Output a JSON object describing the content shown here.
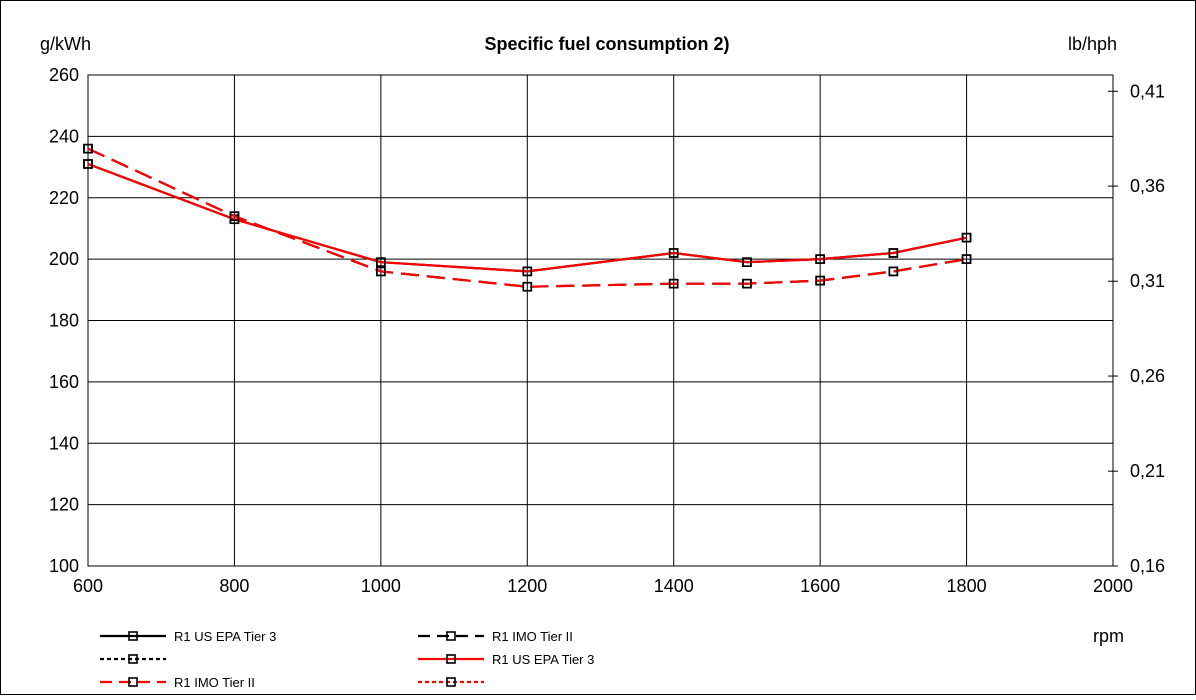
{
  "chart_data": {
    "type": "line",
    "title": "Specific fuel consumption 2)",
    "ylabel": "g/kWh",
    "y2label": "lb/hph",
    "xlabel": "rpm",
    "xlim": [
      600,
      2000
    ],
    "ylim": [
      100,
      260
    ],
    "x_ticks": [
      600,
      800,
      1000,
      1200,
      1400,
      1600,
      1800,
      2000
    ],
    "y_ticks": [
      100,
      120,
      140,
      160,
      180,
      200,
      220,
      240,
      260
    ],
    "y2_ticks": [
      "0,16",
      "0,21",
      "0,26",
      "0,31",
      "0,36",
      "0,41"
    ],
    "y2_ticks_in_y_units": [
      100,
      130.9,
      161.9,
      192.8,
      223.8,
      254.7
    ],
    "grid": true,
    "legend_position": "bottom",
    "series": [
      {
        "name": "R1 US EPA Tier 3",
        "color": "#000000",
        "style": "solid",
        "marker": "square",
        "x": [
          600,
          800,
          1000,
          1200,
          1400,
          1500,
          1600,
          1700,
          1800
        ],
        "values": [
          231,
          213,
          199,
          196,
          202,
          199,
          200,
          202,
          207
        ]
      },
      {
        "name": "R1 IMO Tier II",
        "color": "#000000",
        "style": "dashed",
        "marker": "square",
        "x": [
          600,
          800,
          1000,
          1200,
          1400,
          1500,
          1600,
          1700,
          1800
        ],
        "values": [
          236,
          214,
          196,
          191,
          192,
          192,
          193,
          196,
          200
        ]
      },
      {
        "name": "",
        "color": "#000000",
        "style": "dotted",
        "marker": "square",
        "x": [],
        "values": []
      },
      {
        "name": "R1 US EPA Tier 3",
        "color": "#ff0000",
        "style": "solid",
        "marker": "square",
        "x": [
          600,
          800,
          1000,
          1200,
          1400,
          1500,
          1600,
          1700,
          1800
        ],
        "values": [
          231,
          213,
          199,
          196,
          202,
          199,
          200,
          202,
          207
        ]
      },
      {
        "name": "R1 IMO Tier II",
        "color": "#ff0000",
        "style": "dashed",
        "marker": "square",
        "x": [
          600,
          800,
          1000,
          1200,
          1400,
          1500,
          1600,
          1700,
          1800
        ],
        "values": [
          236,
          214,
          196,
          191,
          192,
          192,
          193,
          196,
          200
        ]
      },
      {
        "name": "",
        "color": "#ff0000",
        "style": "dotted",
        "marker": "square",
        "x": [],
        "values": []
      }
    ]
  }
}
